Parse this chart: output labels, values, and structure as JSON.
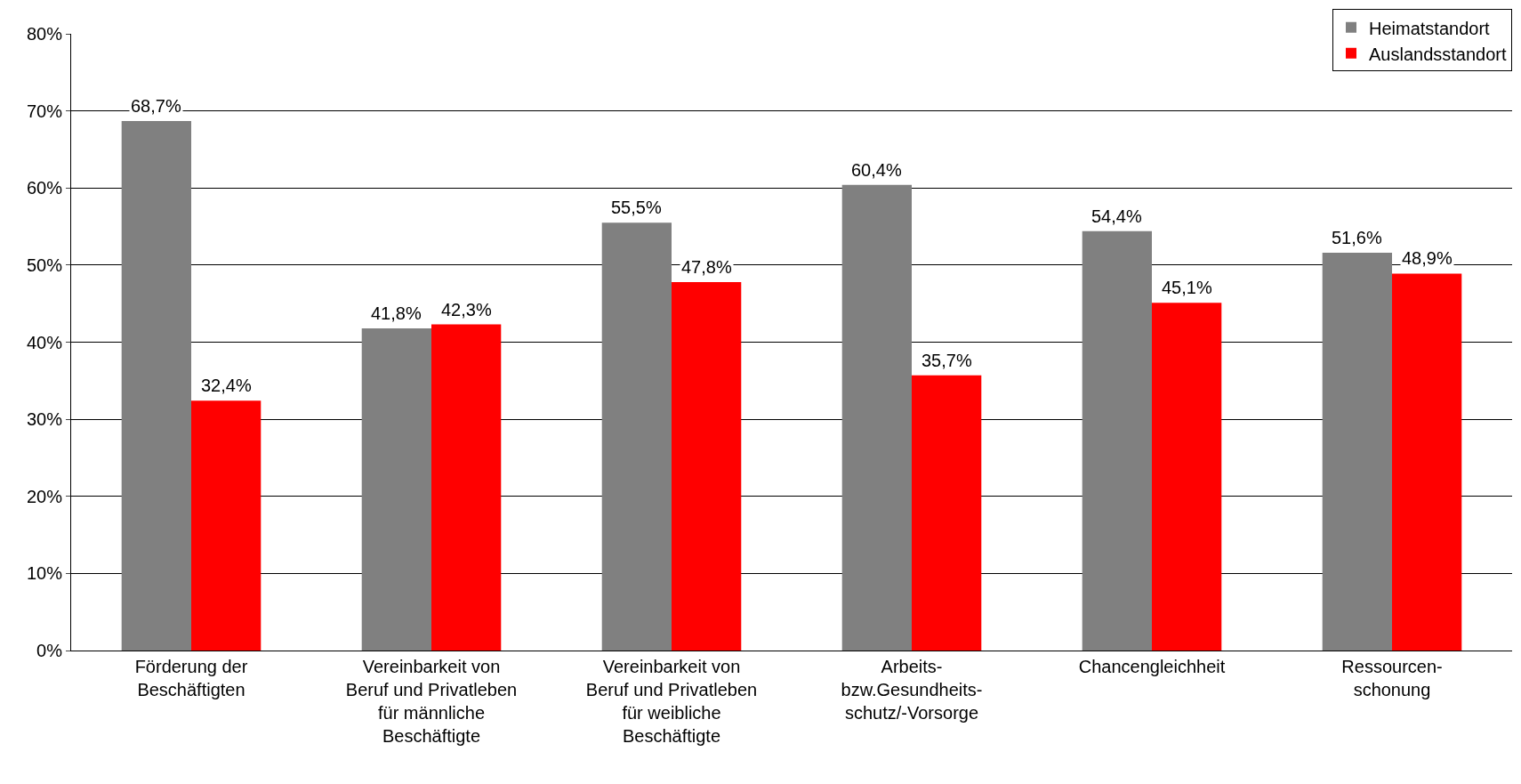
{
  "chart_data": {
    "type": "bar",
    "categories": [
      "Förderung der\nBeschäftigten",
      "Vereinbarkeit von\nBeruf und Privatleben\nfür männliche\nBeschäftigte",
      "Vereinbarkeit von\nBeruf und Privatleben\nfür weibliche\nBeschäftigte",
      "Arbeits-\nbzw.Gesundheits-\nschutz/-Vorsorge",
      "Chancengleichheit",
      "Ressourcen-\nschonung"
    ],
    "series": [
      {
        "name": "Heimatstandort",
        "color": "#808080",
        "values": [
          68.7,
          41.8,
          55.5,
          60.4,
          54.4,
          51.6
        ],
        "value_labels": [
          "68,7%",
          "41,8%",
          "55,5%",
          "60,4%",
          "54,4%",
          "51,6%"
        ]
      },
      {
        "name": "Auslandsstandort",
        "color": "#ff0000",
        "values": [
          32.4,
          42.3,
          47.8,
          35.7,
          45.1,
          48.9
        ],
        "value_labels": [
          "32,4%",
          "42,3%",
          "47,8%",
          "35,7%",
          "45,1%",
          "48,9%"
        ]
      }
    ],
    "ylim": [
      0,
      80
    ],
    "yticks": [
      {
        "value": 0,
        "label": "0%"
      },
      {
        "value": 10,
        "label": "10%"
      },
      {
        "value": 20,
        "label": "20%"
      },
      {
        "value": 30,
        "label": "30%"
      },
      {
        "value": 40,
        "label": "40%"
      },
      {
        "value": 50,
        "label": "50%"
      },
      {
        "value": 60,
        "label": "60%"
      },
      {
        "value": 70,
        "label": "70%"
      },
      {
        "value": 80,
        "label": "80%"
      }
    ],
    "grid": "y",
    "legend": "top right"
  }
}
